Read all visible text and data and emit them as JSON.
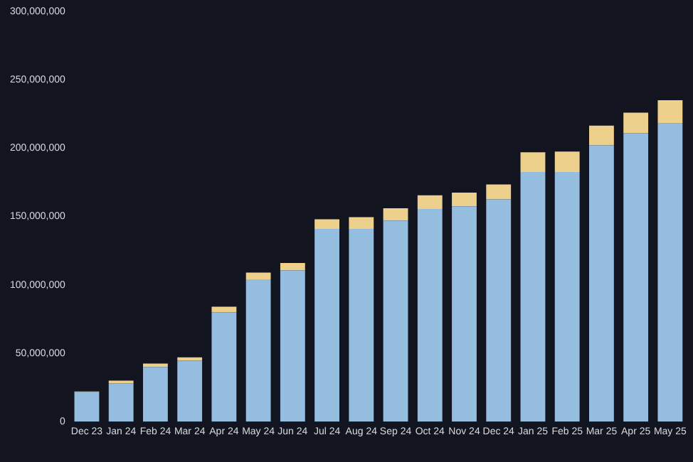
{
  "chart_data": {
    "type": "bar",
    "stacked": true,
    "categories": [
      "Dec 23",
      "Jan 24",
      "Feb 24",
      "Mar 24",
      "Apr 24",
      "May 24",
      "Jun 24",
      "Jul 24",
      "Aug 24",
      "Sep 24",
      "Oct 24",
      "Nov 24",
      "Dec 24",
      "Jan 25",
      "Feb 25",
      "Mar 25",
      "Apr 25",
      "May 25"
    ],
    "series": [
      {
        "color": "#94bde0",
        "values": [
          21500000,
          28000000,
          40000000,
          44500000,
          80000000,
          104000000,
          110500000,
          141000000,
          141000000,
          147000000,
          155500000,
          157500000,
          162500000,
          182500000,
          182500000,
          202000000,
          211000000,
          218000000
        ]
      },
      {
        "color": "#ecd08c",
        "values": [
          500000,
          2000000,
          2500000,
          2500000,
          4000000,
          5000000,
          5500000,
          7000000,
          8500000,
          9000000,
          10000000,
          10000000,
          11000000,
          14500000,
          15000000,
          14500000,
          15000000,
          17000000
        ]
      }
    ],
    "ylim": [
      0,
      300000000
    ],
    "yticks": [
      {
        "value": 0,
        "label": "0"
      },
      {
        "value": 50000000,
        "label": "50,000,000"
      },
      {
        "value": 100000000,
        "label": "100,000,000"
      },
      {
        "value": 150000000,
        "label": "150,000,000"
      },
      {
        "value": 200000000,
        "label": "200,000,000"
      },
      {
        "value": 250000000,
        "label": "250,000,000"
      },
      {
        "value": 300000000,
        "label": "300,000,000"
      }
    ],
    "grid": false,
    "legend": false
  }
}
